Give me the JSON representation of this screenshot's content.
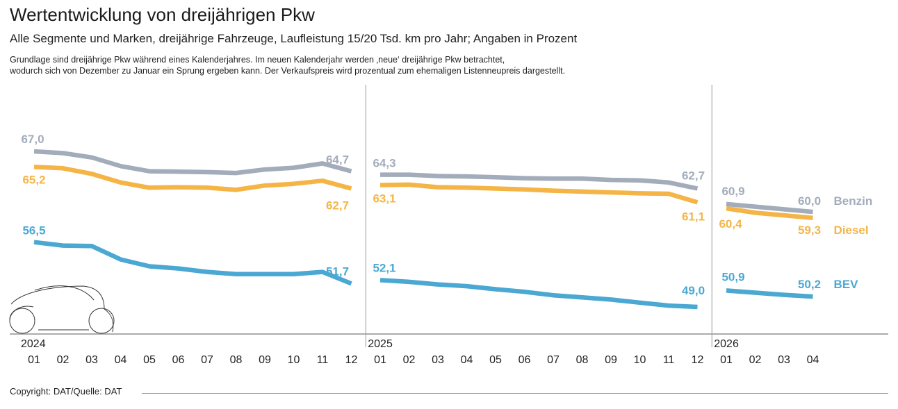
{
  "header": {
    "title": "Wertentwicklung von dreijährigen Pkw",
    "subtitle": "Alle Segmente und Marken, dreijährige Fahrzeuge, Laufleistung 15/20 Tsd. km pro Jahr; Angaben in Prozent",
    "note_line1": "Grundlage sind dreijährige Pkw während eines Kalenderjahres. Im neuen Kalenderjahr werden ‚neue‘ dreijährige Pkw betrachtet,",
    "note_line2": "wodurch sich von Dezember zu Januar ein Sprung ergeben kann. Der Verkaufspreis wird prozentual zum ehemaligen Listenneupreis dargestellt."
  },
  "footer": {
    "copyright": "Copyright: DAT/Quelle: DAT"
  },
  "decor": {
    "car_icon": "car-outline-icon"
  },
  "chart_data": {
    "type": "line",
    "segments": [
      {
        "year": "2024",
        "months": [
          "01",
          "02",
          "03",
          "04",
          "05",
          "06",
          "07",
          "08",
          "09",
          "10",
          "11",
          "12"
        ]
      },
      {
        "year": "2025",
        "months": [
          "01",
          "02",
          "03",
          "04",
          "05",
          "06",
          "07",
          "08",
          "09",
          "10",
          "11",
          "12"
        ]
      },
      {
        "year": "2026",
        "months": [
          "01",
          "02",
          "03",
          "04"
        ]
      }
    ],
    "ylim": [
      40,
      70
    ],
    "series": [
      {
        "name": "Benzin",
        "color": "#a3acbb",
        "values": [
          [
            67.0,
            66.8,
            66.3,
            65.3,
            64.7,
            64.65,
            64.6,
            64.5,
            64.9,
            65.1,
            65.6,
            64.7
          ],
          [
            64.3,
            64.3,
            64.15,
            64.1,
            64.0,
            63.9,
            63.85,
            63.85,
            63.7,
            63.65,
            63.4,
            62.7
          ],
          [
            60.9,
            60.6,
            60.3,
            60.0
          ]
        ],
        "labels": [
          {
            "seg": 0,
            "idx": 0,
            "text": "67,0"
          },
          {
            "seg": 0,
            "idx": 11,
            "text": "64,7"
          },
          {
            "seg": 1,
            "idx": 0,
            "text": "64,3"
          },
          {
            "seg": 1,
            "idx": 11,
            "text": "62,7"
          },
          {
            "seg": 2,
            "idx": 0,
            "text": "60,9"
          },
          {
            "seg": 2,
            "idx": 3,
            "text": "60,0"
          }
        ]
      },
      {
        "name": "Diesel",
        "color": "#f5b546",
        "values": [
          [
            65.2,
            65.05,
            64.4,
            63.4,
            62.8,
            62.85,
            62.8,
            62.55,
            63.05,
            63.25,
            63.6,
            62.7
          ],
          [
            63.1,
            63.15,
            62.85,
            62.8,
            62.7,
            62.6,
            62.45,
            62.35,
            62.25,
            62.15,
            62.1,
            61.1
          ],
          [
            60.4,
            59.9,
            59.6,
            59.3
          ]
        ],
        "labels": [
          {
            "seg": 0,
            "idx": 0,
            "text": "65,2"
          },
          {
            "seg": 0,
            "idx": 11,
            "text": "62,7"
          },
          {
            "seg": 1,
            "idx": 0,
            "text": "63,1"
          },
          {
            "seg": 1,
            "idx": 11,
            "text": "61,1"
          },
          {
            "seg": 2,
            "idx": 0,
            "text": "60,4"
          },
          {
            "seg": 2,
            "idx": 3,
            "text": "59,3"
          }
        ]
      },
      {
        "name": "BEV",
        "color": "#4ba8d2",
        "values": [
          [
            56.5,
            56.1,
            56.05,
            54.5,
            53.7,
            53.45,
            53.05,
            52.8,
            52.8,
            52.8,
            53.05,
            51.7
          ],
          [
            52.1,
            51.9,
            51.6,
            51.4,
            51.05,
            50.75,
            50.35,
            50.1,
            49.85,
            49.5,
            49.15,
            49.0
          ],
          [
            50.9,
            50.65,
            50.4,
            50.2
          ]
        ],
        "labels": [
          {
            "seg": 0,
            "idx": 0,
            "text": "56,5"
          },
          {
            "seg": 0,
            "idx": 11,
            "text": "51,7"
          },
          {
            "seg": 1,
            "idx": 0,
            "text": "52,1"
          },
          {
            "seg": 1,
            "idx": 11,
            "text": "49,0"
          },
          {
            "seg": 2,
            "idx": 0,
            "text": "50,9"
          },
          {
            "seg": 2,
            "idx": 3,
            "text": "50,2"
          }
        ]
      }
    ]
  }
}
